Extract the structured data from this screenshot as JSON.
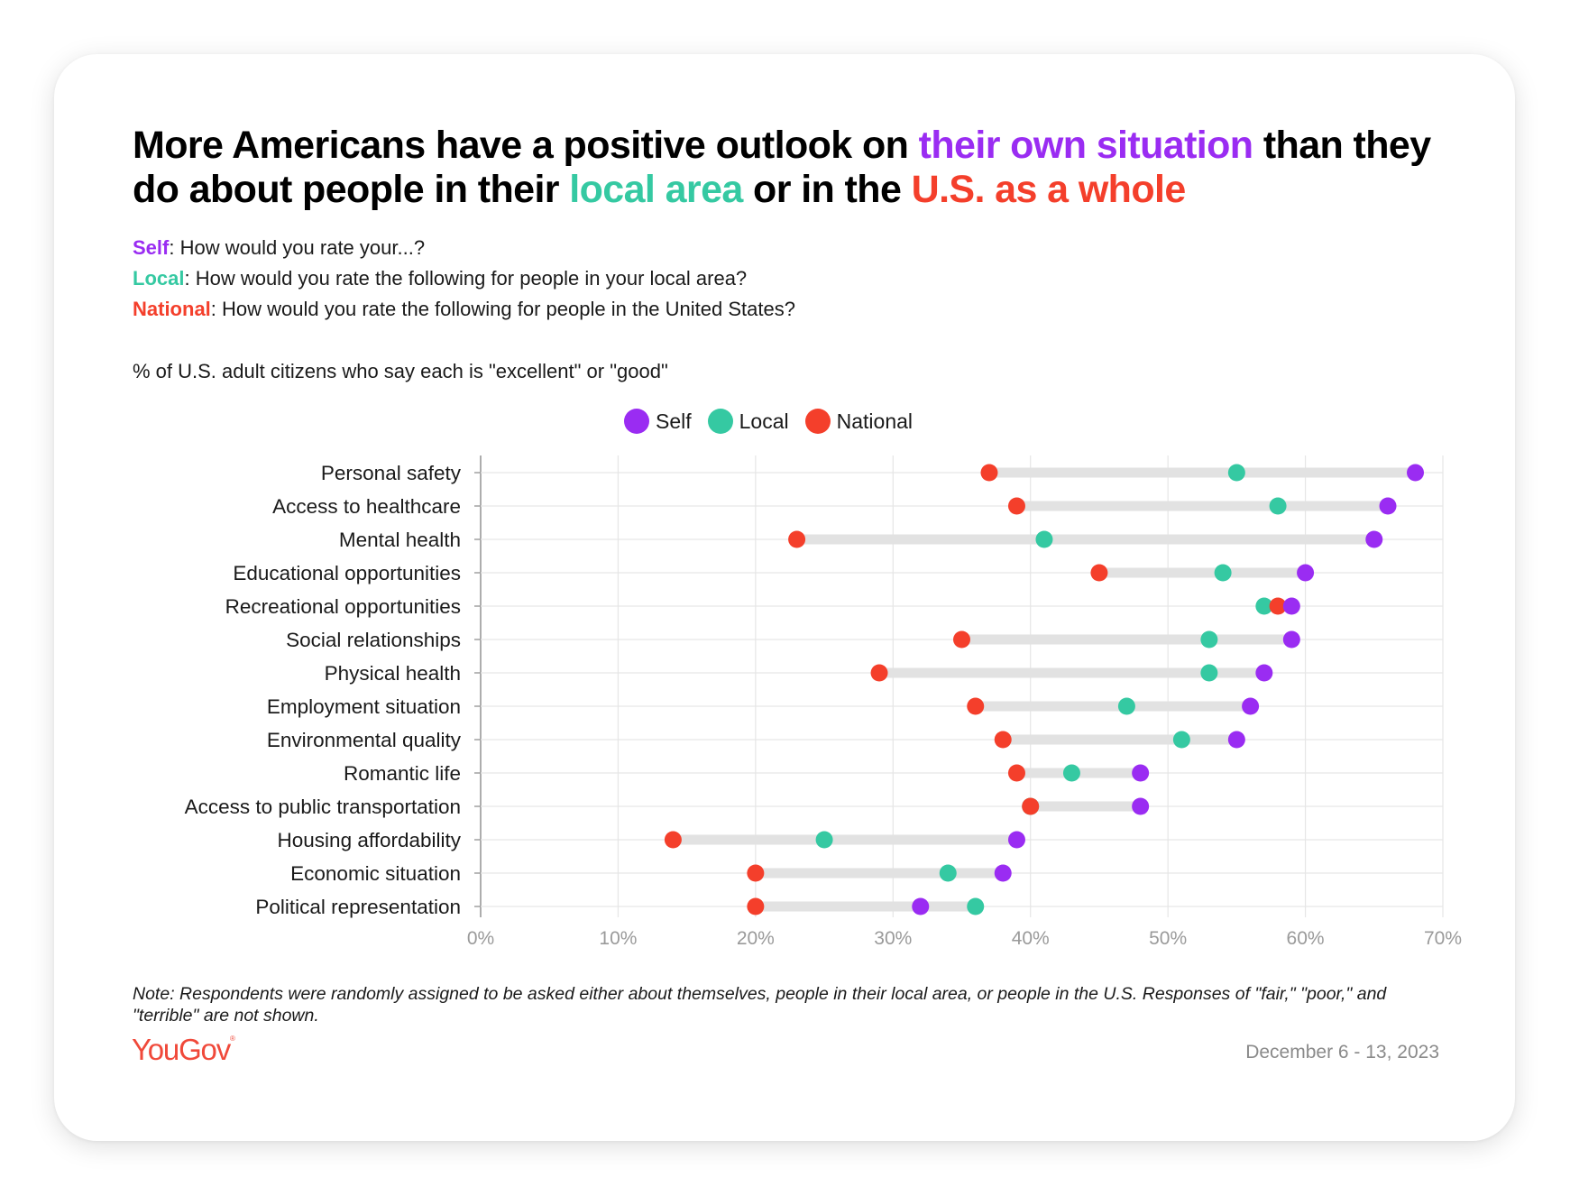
{
  "colors": {
    "self": "#9a2cf2",
    "local": "#35c9a2",
    "national": "#f43f2b",
    "bar": "#e2e2e2",
    "grid": "#e6e6e6",
    "axis": "#9a9a9a"
  },
  "headline": {
    "part1": "More Americans have a positive outlook on ",
    "self_phrase": "their own situation",
    "part2": " than they do about people in their ",
    "local_phrase": "local area",
    "part3": " or in the ",
    "national_phrase": "U.S. as a whole"
  },
  "questions": [
    {
      "key": "Self",
      "text": ": How would you rate your...?"
    },
    {
      "key": "Local",
      "text": ": How would you rate the following for people in your local area?"
    },
    {
      "key": "National",
      "text": ": How would you rate the following for people in the United States?"
    }
  ],
  "measure": "% of U.S. adult citizens who say each is \"excellent\" or \"good\"",
  "legend": [
    "Self",
    "Local",
    "National"
  ],
  "chart_data": {
    "type": "dot-plot",
    "categories": [
      "Personal safety",
      "Access to healthcare",
      "Mental health",
      "Educational opportunities",
      "Recreational opportunities",
      "Social relationships",
      "Physical health",
      "Employment situation",
      "Environmental quality",
      "Romantic life",
      "Access to public transportation",
      "Housing affordability",
      "Economic situation",
      "Political representation"
    ],
    "series": [
      {
        "name": "Self",
        "values": [
          68,
          66,
          65,
          60,
          59,
          59,
          57,
          56,
          55,
          48,
          48,
          39,
          38,
          32
        ]
      },
      {
        "name": "Local",
        "values": [
          55,
          58,
          41,
          54,
          57,
          53,
          53,
          47,
          51,
          43,
          40,
          25,
          34,
          36
        ]
      },
      {
        "name": "National",
        "values": [
          37,
          39,
          23,
          45,
          58,
          35,
          29,
          36,
          38,
          39,
          40,
          14,
          20,
          20
        ]
      }
    ],
    "xlim": [
      0,
      70
    ],
    "x_ticks": [
      "0%",
      "10%",
      "20%",
      "30%",
      "40%",
      "50%",
      "60%",
      "70%"
    ],
    "grid": true,
    "legend_position": "top-center"
  },
  "note": "Note: Respondents were randomly assigned to be asked either about themselves, people in their local area, or people in the U.S. Responses of \"fair,\" \"poor,\" and \"terrible\" are not shown.",
  "brand": {
    "name": "YouGov",
    "mark": "®"
  },
  "date": "December 6 - 13, 2023"
}
